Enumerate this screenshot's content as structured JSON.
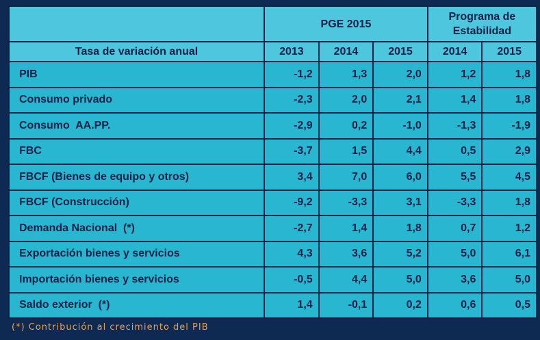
{
  "table": {
    "header_label": "Tasa de variación anual",
    "group_pge": "PGE 2015",
    "group_prog_line1": "Programa de",
    "group_prog_line2": "Estabilidad",
    "years": [
      "2013",
      "2014",
      "2015",
      "2014",
      "2015"
    ],
    "rows": [
      {
        "label": "PIB",
        "values": [
          "-1,2",
          "1,3",
          "2,0",
          "1,2",
          "1,8"
        ]
      },
      {
        "label": "Consumo privado",
        "values": [
          "-2,3",
          "2,0",
          "2,1",
          "1,4",
          "1,8"
        ]
      },
      {
        "label": "Consumo  AA.PP.",
        "values": [
          "-2,9",
          "0,2",
          "-1,0",
          "-1,3",
          "-1,9"
        ]
      },
      {
        "label": "FBC",
        "values": [
          "-3,7",
          "1,5",
          "4,4",
          "0,5",
          "2,9"
        ]
      },
      {
        "label": "FBCF (Bienes de equipo y otros)",
        "values": [
          "3,4",
          "7,0",
          "6,0",
          "5,5",
          "4,5"
        ]
      },
      {
        "label": "FBCF (Construcción)",
        "values": [
          "-9,2",
          "-3,3",
          "3,1",
          "-3,3",
          "1,8"
        ]
      },
      {
        "label": "Demanda Nacional  (*)",
        "values": [
          "-2,7",
          "1,4",
          "1,8",
          "0,7",
          "1,2"
        ]
      },
      {
        "label": "Exportación bienes y servicios",
        "values": [
          "4,3",
          "3,6",
          "5,2",
          "5,0",
          "6,1"
        ]
      },
      {
        "label": "Importación bienes y servicios",
        "values": [
          "-0,5",
          "4,4",
          "5,0",
          "3,6",
          "5,0"
        ]
      },
      {
        "label": "Saldo exterior  (*)",
        "values": [
          "1,4",
          "-0,1",
          "0,2",
          "0,6",
          "0,5"
        ]
      }
    ]
  },
  "footnote": "(*) Contribución al crecimiento del PIB",
  "colors": {
    "background": "#0f2a52",
    "cell": "#29b6d1",
    "header_cell": "#4ec6de",
    "text": "#0c1f46",
    "footnote": "#e8a04a"
  }
}
